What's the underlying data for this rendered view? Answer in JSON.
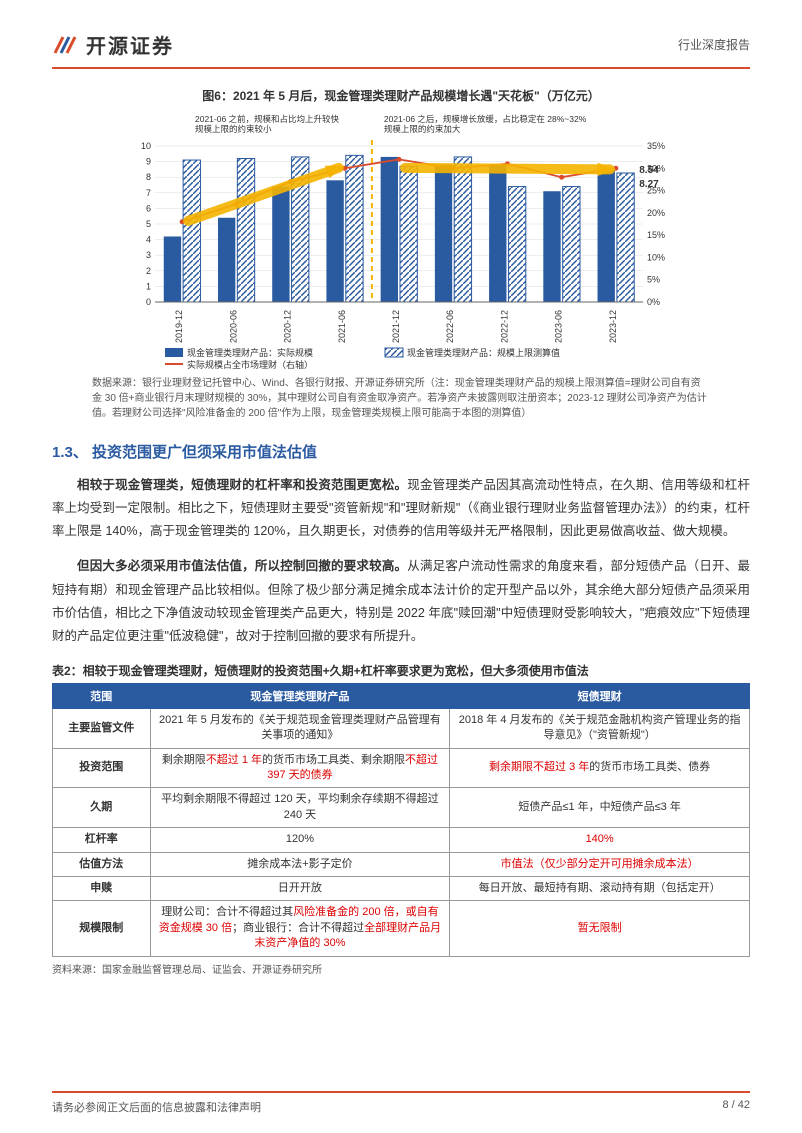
{
  "header": {
    "logo_text": "开源证券",
    "right_text": "行业深度报告"
  },
  "chart": {
    "title": "图6：2021 年 5 月后，现金管理类理财产品规模增长遇\"天花板\"（万亿元）",
    "type": "bar_line_combo",
    "note_left": "2021-06 之前，规模和占比均上升较快；规模上限的约束较小",
    "note_right": "2021-06 之后，规模增长放缓，占比稳定在 28%~32%；规模上限的约束加大",
    "categories": [
      "2019-12",
      "2020-06",
      "2020-12",
      "2021-06",
      "2021-12",
      "2022-06",
      "2022-12",
      "2023-06",
      "2023-12"
    ],
    "bar_actual": [
      4.2,
      5.4,
      7.4,
      7.8,
      9.3,
      8.8,
      8.8,
      7.1,
      8.54
    ],
    "bar_limit": [
      9.1,
      9.2,
      9.3,
      9.4,
      8.7,
      9.3,
      7.4,
      7.4,
      8.27
    ],
    "line_pct": [
      18,
      22,
      27,
      30,
      32,
      30,
      31,
      28,
      30
    ],
    "last_label_actual": "8.54",
    "last_label_limit": "8.27",
    "y_left": {
      "min": 0,
      "max": 10,
      "step": 1
    },
    "y_right": {
      "min": 0,
      "max": 35,
      "step": 5,
      "suffix": "%"
    },
    "legend": {
      "bar_solid": "现金管理类理财产品：实际规模",
      "bar_hatch": "现金管理类理财产品：规模上限测算值",
      "line": "实际规模占全市场理财（右轴）"
    },
    "colors": {
      "bar_solid": "#2a5aa0",
      "bar_hatch_fill": "#ffffff",
      "bar_hatch_stroke": "#2a5aa0",
      "line": "#d94b2b",
      "arrow": "#f5b400",
      "divider": "#f5b400",
      "grid": "#d9d9d9",
      "axis": "#666666",
      "text": "#333333"
    },
    "source": "数据来源：银行业理财登记托管中心、Wind、各银行财报、开源证券研究所（注：现金管理类理财产品的规模上限测算值=理财公司自有资金 30 倍+商业银行月末理财规模的 30%，其中理财公司自有资金取净资产。若净资产未披露则取注册资本；2023-12 理财公司净资产为估计值。若理财公司选择\"风险准备金的 200 倍\"作为上限，现金管理类规模上限可能高于本图的测算值）"
  },
  "section": {
    "heading": "1.3、 投资范围更广但须采用市值法估值",
    "p1_bold": "相较于现金管理类，短债理财的杠杆率和投资范围更宽松。",
    "p1_rest": "现金管理类产品因其高流动性特点，在久期、信用等级和杠杆率上均受到一定限制。相比之下，短债理财主要受\"资管新规\"和\"理财新规\"（《商业银行理财业务监督管理办法》）的约束，杠杆率上限是 140%，高于现金管理类的 120%，且久期更长，对债券的信用等级并无严格限制，因此更易做高收益、做大规模。",
    "p2_bold": "但因大多必须采用市值法估值，所以控制回撤的要求较高。",
    "p2_rest": "从满足客户流动性需求的角度来看，部分短债产品（日开、最短持有期）和现金管理产品比较相似。但除了极少部分满足摊余成本法计价的定开型产品以外，其余绝大部分短债产品须采用市价估值，相比之下净值波动较现金管理类产品更大，特别是 2022 年底\"赎回潮\"中短债理财受影响较大，\"疤痕效应\"下短债理财的产品定位更注重\"低波稳健\"，故对于控制回撤的要求有所提升。"
  },
  "table": {
    "title": "表2：相较于现金管理类理财，短债理财的投资范围+久期+杠杆率要求更为宽松，但大多须使用市值法",
    "columns": [
      "范围",
      "现金管理类理财产品",
      "短债理财"
    ],
    "rows": [
      {
        "head": "主要监管文件",
        "c1": "2021 年 5 月发布的《关于规范现金管理类理财产品管理有关事项的通知》",
        "c2": "2018 年 4 月发布的《关于规范金融机构资产管理业务的指导意见》（\"资管新规\"）"
      },
      {
        "head": "投资范围",
        "c1_pre": "剩余期限",
        "c1_red1": "不超过 1 年",
        "c1_mid": "的货币市场工具类、剩余期限",
        "c1_red2": "不超过 397 天的债券",
        "c2_red": "剩余期限不超过 3 年",
        "c2_post": "的货币市场工具类、债券"
      },
      {
        "head": "久期",
        "c1": "平均剩余期限不得超过 120 天，平均剩余存续期不得超过 240 天",
        "c2": "短债产品≤1 年，中短债产品≤3 年"
      },
      {
        "head": "杠杆率",
        "c1": "120%",
        "c2_red": "140%"
      },
      {
        "head": "估值方法",
        "c1": "摊余成本法+影子定价",
        "c2_red": "市值法（仅少部分定开可用摊余成本法）"
      },
      {
        "head": "申赎",
        "c1": "日开开放",
        "c2": "每日开放、最短持有期、滚动持有期（包括定开）"
      },
      {
        "head": "规模限制",
        "c1_pre": "理财公司：合计不得超过其",
        "c1_red1": "风险准备金的 200 倍，或自有资金规模 30 倍",
        "c1_mid": "；商业银行：合计不得超过",
        "c1_red2": "全部理财产品月末资产净值的 30%",
        "c2_red": "暂无限制"
      }
    ],
    "source": "资料来源：国家金融监督管理总局、证监会、开源证券研究所"
  },
  "footer": {
    "left": "请务必参阅正文后面的信息披露和法律声明",
    "right": "8 / 42"
  }
}
